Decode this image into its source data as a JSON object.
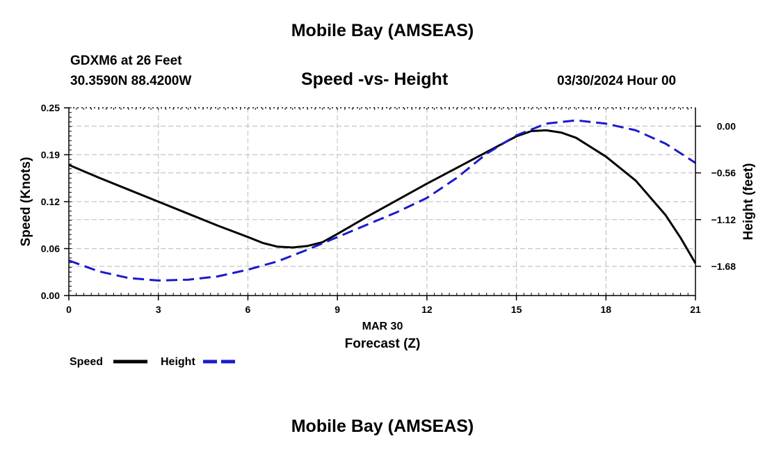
{
  "header": {
    "title": "Mobile Bay (AMSEAS)",
    "station_name": "GDXM6 at 26 Feet",
    "station_coords": "30.3590N  88.4200W",
    "plot_title": "Speed -vs- Height",
    "date": "03/30/2024 Hour 00"
  },
  "footer": {
    "title": "Mobile Bay (AMSEAS)"
  },
  "chart_data": {
    "type": "line",
    "xlabel": "Forecast (Z)",
    "date_label": "MAR 30",
    "ylabel_left": "Speed (Knots)",
    "ylabel_right": "Height (feet)",
    "xlim": [
      0,
      21
    ],
    "x_ticks": [
      0,
      3,
      6,
      9,
      12,
      15,
      18,
      21
    ],
    "x_tick_labels": [
      "0",
      "3",
      "6",
      "9",
      "12",
      "15",
      "18",
      "21"
    ],
    "ylim_left": [
      0,
      0.25
    ],
    "y_left_ticks": [
      0,
      0.0625,
      0.125,
      0.1875,
      0.25
    ],
    "y_left_tick_labels": [
      "0.00",
      "0.06",
      "0.12",
      "0.19",
      "0.25"
    ],
    "ylim_right": [
      -2.03,
      0.22
    ],
    "y_right_ticks": [
      -1.68,
      -1.12,
      -0.56,
      0.0
    ],
    "y_right_tick_labels": [
      "−1.68",
      "−1.12",
      "−0.56",
      "0.00"
    ],
    "grid": true,
    "legend_position": "bottom-left",
    "series": [
      {
        "name": "Speed",
        "axis": "left",
        "color": "#000000",
        "dash": "solid",
        "x": [
          0,
          1,
          2,
          3,
          4,
          5,
          6,
          6.5,
          7,
          7.5,
          8,
          8.5,
          9,
          10,
          11,
          12,
          13,
          14,
          15,
          15.5,
          16,
          16.5,
          17,
          18,
          19,
          20,
          20.5,
          21
        ],
        "values": [
          0.174,
          0.157,
          0.141,
          0.125,
          0.109,
          0.093,
          0.078,
          0.07,
          0.065,
          0.064,
          0.066,
          0.071,
          0.082,
          0.105,
          0.127,
          0.149,
          0.17,
          0.191,
          0.212,
          0.219,
          0.22,
          0.217,
          0.21,
          0.185,
          0.153,
          0.107,
          0.077,
          0.043
        ]
      },
      {
        "name": "Height",
        "axis": "right",
        "color": "#1a1acc",
        "dash": "dashed",
        "x": [
          0,
          1,
          2,
          3,
          4,
          5,
          6,
          7,
          8,
          9,
          10,
          11,
          12,
          13,
          14,
          15,
          16,
          17,
          18,
          19,
          20,
          21
        ],
        "values": [
          -1.61,
          -1.74,
          -1.82,
          -1.85,
          -1.84,
          -1.8,
          -1.72,
          -1.62,
          -1.48,
          -1.33,
          -1.18,
          -1.03,
          -0.86,
          -0.62,
          -0.33,
          -0.11,
          0.03,
          0.07,
          0.03,
          -0.05,
          -0.21,
          -0.44
        ]
      }
    ]
  }
}
